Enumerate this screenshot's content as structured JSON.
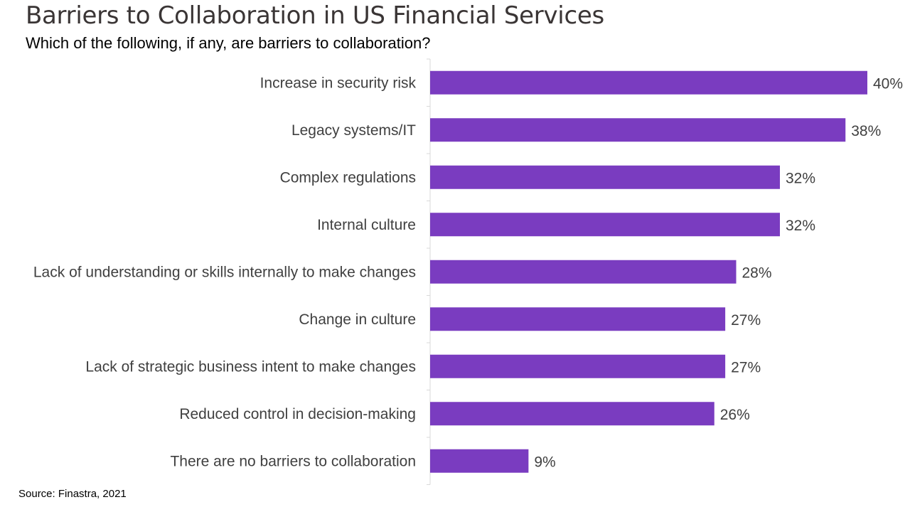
{
  "header": {
    "title": "Barriers to Collaboration in US Financial Services",
    "subtitle": "Which of the following, if any, are barriers to collaboration?"
  },
  "footer": {
    "source": "Source: Finastra, 2021"
  },
  "colors": {
    "bar": "#7a3cc0",
    "label_text": "#404040",
    "axis": "#d9d9d9"
  },
  "chart_data": {
    "type": "bar",
    "orientation": "horizontal",
    "title": "Barriers to Collaboration in US Financial Services",
    "subtitle": "Which of the following, if any, are barriers to collaboration?",
    "categories": [
      "Increase in security risk",
      "Legacy systems/IT",
      "Complex regulations",
      "Internal culture",
      "Lack of understanding or skills internally to make changes",
      "Change in culture",
      "Lack of strategic business intent to make changes",
      "Reduced control in decision-making",
      "There are no barriers to collaboration"
    ],
    "values": [
      40,
      38,
      32,
      32,
      28,
      27,
      27,
      26,
      9
    ],
    "data_labels": [
      "40%",
      "38%",
      "32%",
      "32%",
      "28%",
      "27%",
      "27%",
      "26%",
      "9%"
    ],
    "unit": "%",
    "xlim": [
      0,
      40
    ],
    "grid": false,
    "legend": "none"
  }
}
